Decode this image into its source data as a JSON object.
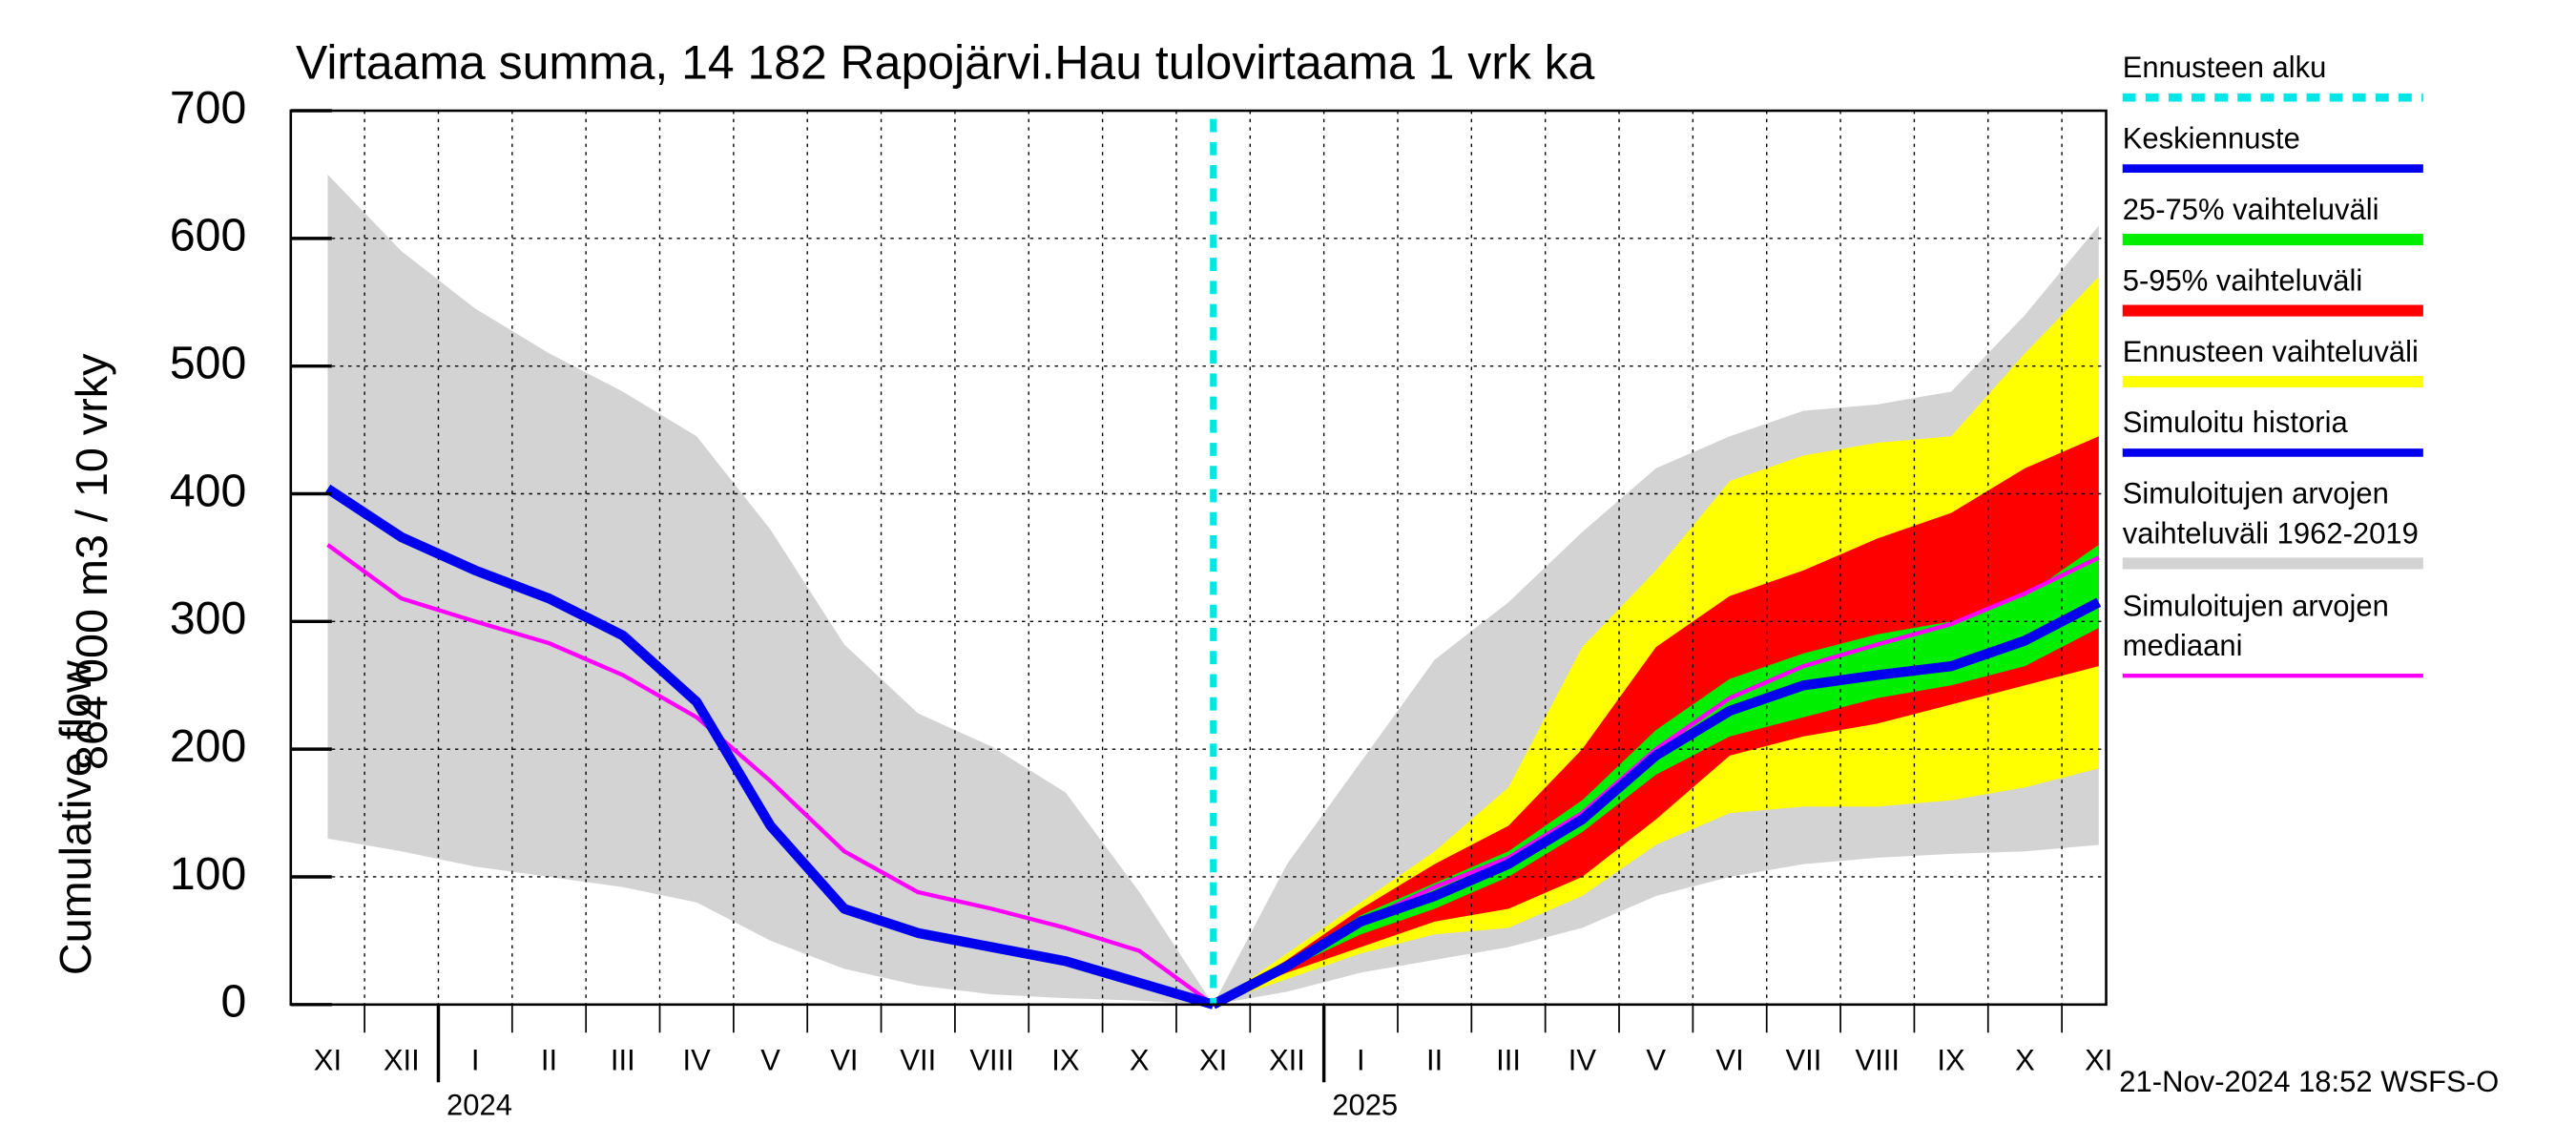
{
  "chart_data": {
    "type": "band-line",
    "title": "Virtaama summa, 14 182 Rapojärvi.Hau tulovirtaama 1 vrk ka",
    "ylabel": [
      "Cumulative flow",
      "864 000 m3 / 10 vrky"
    ],
    "footer": "21-Nov-2024 18:52 WSFS-O",
    "categories": [
      "XI",
      "XII",
      "I",
      "II",
      "III",
      "IV",
      "V",
      "VI",
      "VII",
      "VIII",
      "IX",
      "X",
      "XI",
      "XII",
      "I",
      "II",
      "III",
      "IV",
      "V",
      "VI",
      "VII",
      "VIII",
      "IX",
      "X",
      "XI"
    ],
    "years": [
      "2024",
      "2025"
    ],
    "ylim": [
      0,
      700
    ],
    "yticks": [
      0,
      100,
      200,
      300,
      400,
      500,
      600,
      700
    ],
    "grid": true,
    "series": [
      {
        "name": [
          "Ennusteen alku"
        ],
        "color": "#00e5e5",
        "style": "forecast-start"
      },
      {
        "name": [
          "Keskiennuste"
        ],
        "color": "#0000ee",
        "style": "line",
        "values": [
          null,
          null,
          null,
          null,
          null,
          null,
          null,
          null,
          null,
          null,
          null,
          null,
          0,
          30,
          65,
          85,
          110,
          145,
          195,
          230,
          250,
          258,
          265,
          285,
          315
        ]
      },
      {
        "name": [
          "25-75% vaihteluväli"
        ],
        "color": "#00ee00",
        "style": "band",
        "lower": [
          null,
          null,
          null,
          null,
          null,
          null,
          null,
          null,
          null,
          null,
          null,
          null,
          0,
          28,
          55,
          75,
          100,
          135,
          180,
          210,
          225,
          240,
          250,
          265,
          295
        ],
        "upper": [
          null,
          null,
          null,
          null,
          null,
          null,
          null,
          null,
          null,
          null,
          null,
          null,
          0,
          33,
          70,
          95,
          120,
          160,
          215,
          255,
          275,
          290,
          300,
          320,
          360
        ]
      },
      {
        "name": [
          "5-95% vaihteluväli"
        ],
        "color": "#ff0000",
        "style": "band",
        "lower": [
          null,
          null,
          null,
          null,
          null,
          null,
          null,
          null,
          null,
          null,
          null,
          null,
          0,
          25,
          45,
          65,
          75,
          100,
          145,
          195,
          210,
          220,
          235,
          250,
          265
        ],
        "upper": [
          null,
          null,
          null,
          null,
          null,
          null,
          null,
          null,
          null,
          null,
          null,
          null,
          0,
          35,
          75,
          110,
          140,
          200,
          280,
          320,
          340,
          365,
          385,
          420,
          445
        ]
      },
      {
        "name": [
          "Ennusteen vaihteluväli"
        ],
        "color": "#ffff00",
        "style": "band",
        "lower": [
          null,
          null,
          null,
          null,
          null,
          null,
          null,
          null,
          null,
          null,
          null,
          null,
          0,
          20,
          40,
          55,
          60,
          85,
          125,
          150,
          155,
          155,
          160,
          170,
          185
        ],
        "upper": [
          null,
          null,
          null,
          null,
          null,
          null,
          null,
          null,
          null,
          null,
          null,
          null,
          0,
          40,
          80,
          120,
          170,
          280,
          340,
          410,
          430,
          440,
          445,
          510,
          570
        ]
      },
      {
        "name": [
          "Simuloitu historia"
        ],
        "color": "#0000ee",
        "style": "line",
        "values": [
          404,
          366,
          340,
          318,
          289,
          237,
          140,
          75,
          56,
          45,
          34,
          17,
          0,
          null,
          null,
          null,
          null,
          null,
          null,
          null,
          null,
          null,
          null,
          null,
          null
        ]
      },
      {
        "name": [
          "Simuloitujen arvojen",
          "vaihteluväli 1962-2019"
        ],
        "color": "#d3d3d3",
        "style": "band",
        "lower": [
          130,
          120,
          108,
          100,
          92,
          80,
          50,
          28,
          15,
          8,
          5,
          3,
          0,
          10,
          25,
          35,
          45,
          60,
          85,
          100,
          110,
          115,
          118,
          120,
          125
        ],
        "upper": [
          650,
          590,
          545,
          510,
          480,
          445,
          372,
          282,
          228,
          202,
          166,
          88,
          0,
          110,
          190,
          270,
          315,
          370,
          420,
          445,
          465,
          470,
          480,
          540,
          610
        ]
      },
      {
        "name": [
          "Simuloitujen arvojen",
          "mediaani"
        ],
        "color": "#ff00ff",
        "style": "thin-line",
        "values": [
          360,
          318,
          300,
          283,
          258,
          225,
          175,
          120,
          88,
          75,
          60,
          42,
          0,
          32,
          65,
          92,
          115,
          150,
          200,
          240,
          265,
          282,
          298,
          322,
          350
        ]
      }
    ]
  }
}
